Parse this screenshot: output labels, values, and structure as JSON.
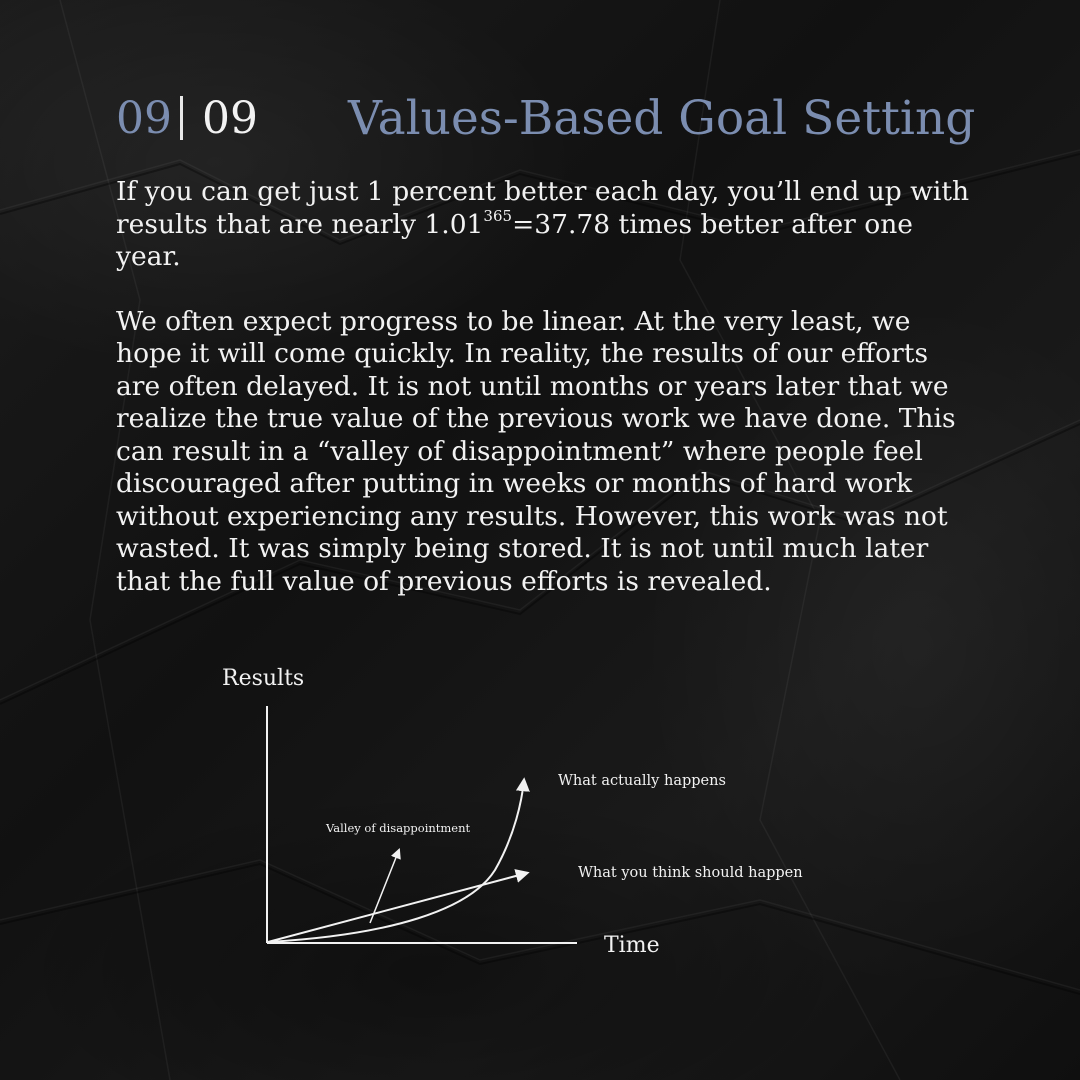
{
  "header": {
    "current": "09",
    "total": "09",
    "title": "Values-Based Goal Setting"
  },
  "body": {
    "p1_before": "If you can get just 1 percent better each day, you’ll end up with results that are nearly 1.01",
    "p1_sup": "365",
    "p1_after": "=37.78 times better after one year.",
    "p2": "We often expect progress to be linear. At the very least, we hope it will come quickly. In reality, the results of our efforts are often delayed. It is not until months or years later that we realize the true value of the previous work we have done. This can result in a “valley of disappointment” where people feel discouraged after putting in weeks or months of hard work without experiencing any results. However, this work was not wasted. It was simply being stored. It is not until much later that the full value of previous efforts is revealed."
  },
  "diagram": {
    "y_axis_label": "Results",
    "x_axis_label": "Time",
    "curve_label": "What actually happens",
    "line_label": "What you think should happen",
    "valley_label": "Valley of disappointment",
    "stroke_color": "#f2f2f2"
  }
}
